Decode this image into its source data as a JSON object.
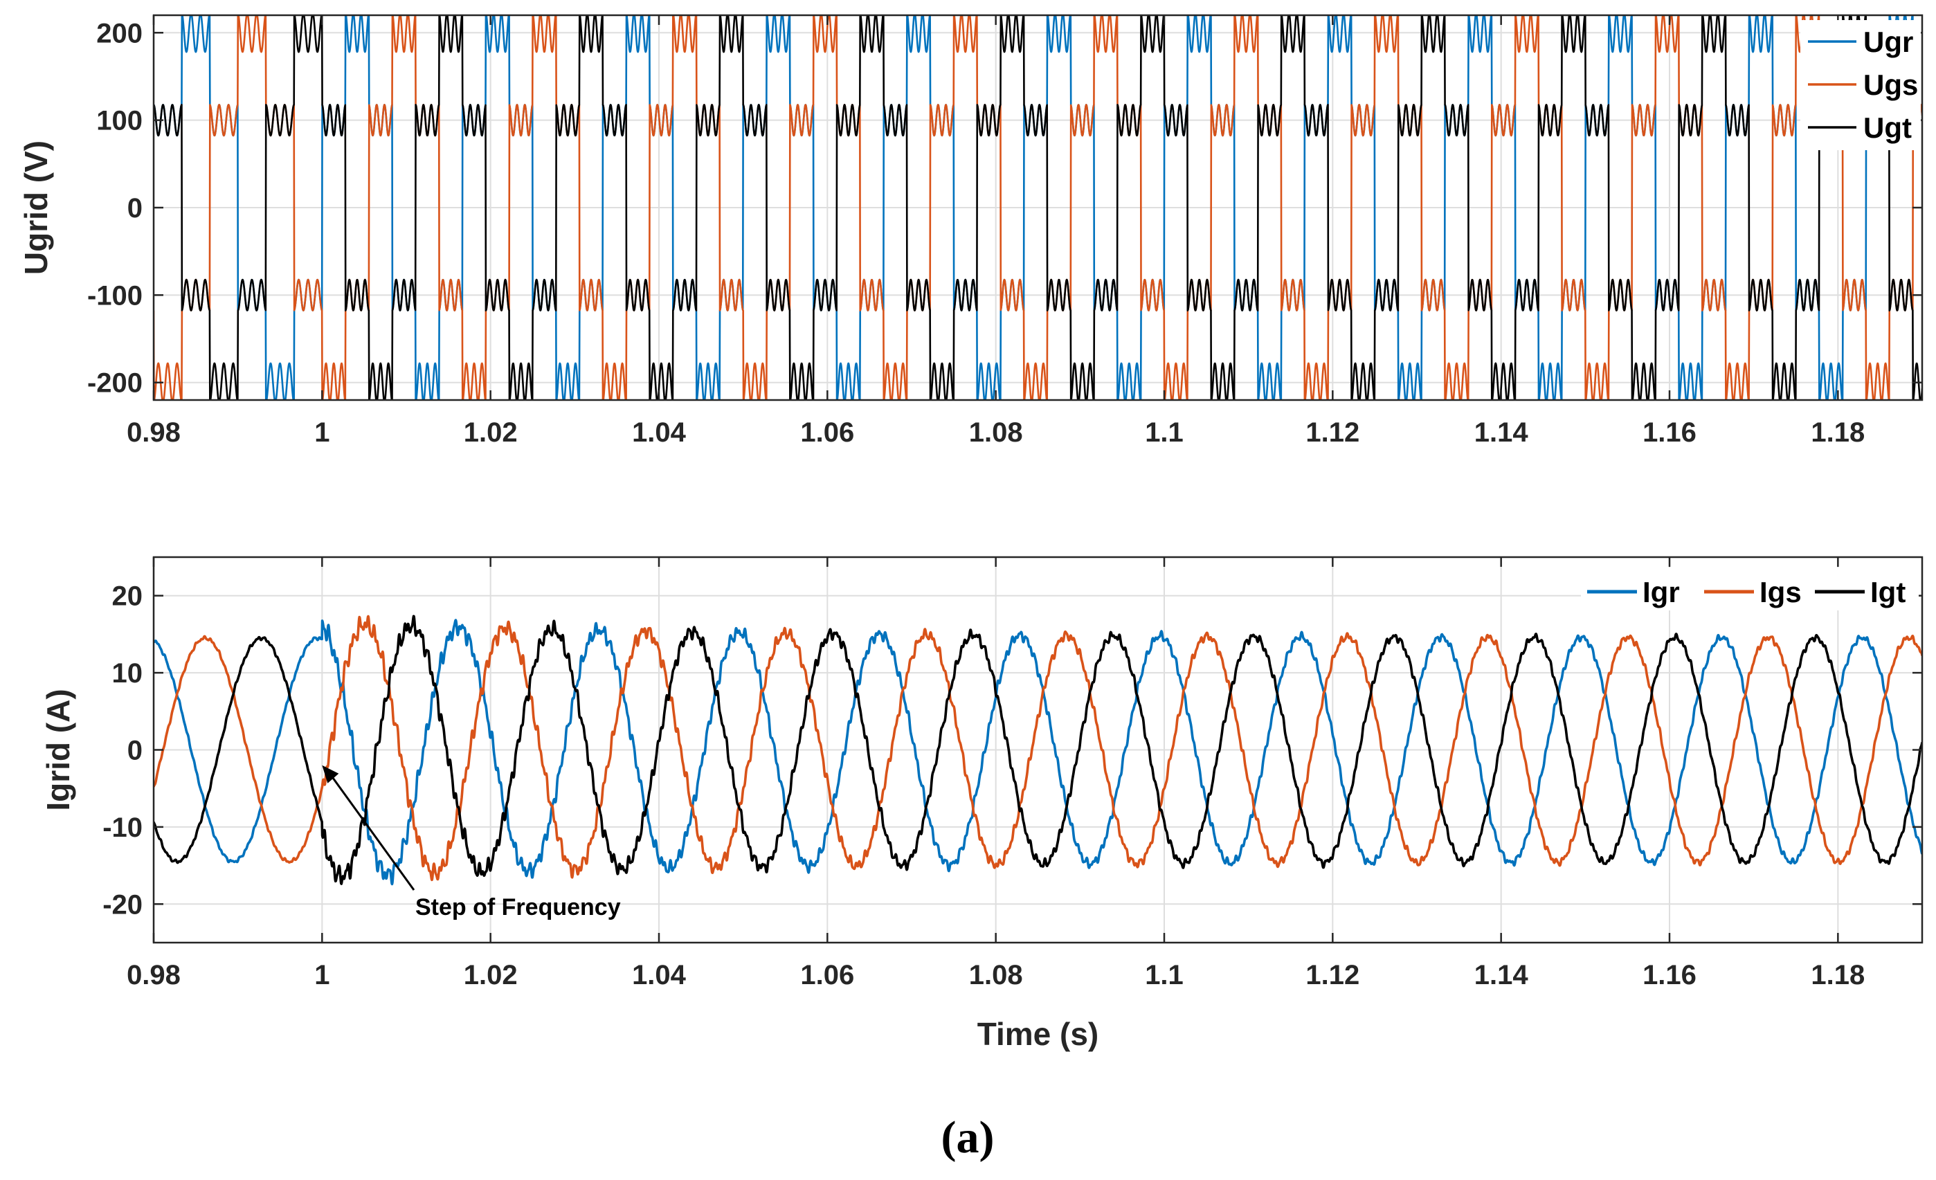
{
  "chart_data": [
    {
      "type": "line",
      "title": "",
      "xlabel": "",
      "ylabel": "Ugrid (V)",
      "xlim": [
        0.98,
        1.19
      ],
      "ylim": [
        -220,
        220
      ],
      "grid": true,
      "x_ticks": [
        0.98,
        1.0,
        1.02,
        1.04,
        1.06,
        1.08,
        1.1,
        1.12,
        1.14,
        1.16,
        1.18
      ],
      "x_tick_labels": [
        "0.98",
        "1",
        "1.02",
        "1.04",
        "1.06",
        "1.08",
        "1.1",
        "1.12",
        "1.14",
        "1.16",
        "1.18"
      ],
      "y_ticks": [
        200,
        100,
        0,
        -100,
        -200
      ],
      "y_tick_labels": [
        "200",
        "100",
        "0",
        "-100",
        "-200"
      ],
      "legend_position": "top-right",
      "waveform": {
        "kind": "six-step",
        "levels": [
          100,
          200,
          100,
          -100,
          -200,
          -100
        ],
        "ripple_amplitude": 22,
        "ripple_cycles_per_level": 3,
        "frequency_before_hz": 50,
        "frequency_after_hz": 60,
        "step_time_s": 1.0
      },
      "series": [
        {
          "name": "Ugr",
          "color": "#0072BD",
          "phase_deg": 0
        },
        {
          "name": "Ugs",
          "color": "#D95319",
          "phase_deg": -120
        },
        {
          "name": "Ugt",
          "color": "#000000",
          "phase_deg": 120
        }
      ]
    },
    {
      "type": "line",
      "title": "",
      "xlabel": "Time (s)",
      "ylabel": "Igrid (A)",
      "xlim": [
        0.98,
        1.19
      ],
      "ylim": [
        -25,
        25
      ],
      "grid": true,
      "x_ticks": [
        0.98,
        1.0,
        1.02,
        1.04,
        1.06,
        1.08,
        1.1,
        1.12,
        1.14,
        1.16,
        1.18
      ],
      "x_tick_labels": [
        "0.98",
        "1",
        "1.02",
        "1.04",
        "1.06",
        "1.08",
        "1.1",
        "1.12",
        "1.14",
        "1.16",
        "1.18"
      ],
      "y_ticks": [
        20,
        10,
        0,
        -10,
        -20
      ],
      "y_tick_labels": [
        "20",
        "10",
        "0",
        "-10",
        "-20"
      ],
      "legend_position": "top-right",
      "waveform": {
        "kind": "sine",
        "amplitude_a": 14.5,
        "transient_peak_a": 16.5,
        "frequency_before_hz": 50,
        "frequency_after_hz": 60,
        "step_time_s": 1.0
      },
      "annotation": {
        "text": "Step of Frequency",
        "x": 1.0,
        "y": -2
      },
      "series": [
        {
          "name": "Igr",
          "color": "#0072BD",
          "phase_deg": 100
        },
        {
          "name": "Igs",
          "color": "#D95319",
          "phase_deg": -20
        },
        {
          "name": "Igt",
          "color": "#000000",
          "phase_deg": -140
        }
      ]
    }
  ],
  "caption": "(a)"
}
